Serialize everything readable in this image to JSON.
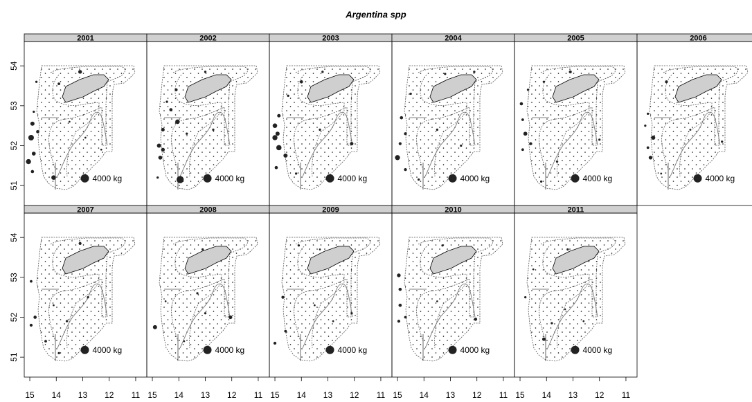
{
  "chart_data": {
    "type": "bubble-map",
    "title": "Argentina spp",
    "xlim": [
      15.21,
      10.58
    ],
    "ylim": [
      50.5,
      54.61
    ],
    "xticks": [
      15,
      14,
      13,
      12,
      11
    ],
    "yticks": [
      51,
      52,
      53,
      54
    ],
    "color": "#222222",
    "legend": {
      "value": 4000,
      "label": "4000 kg",
      "lon": 12.92,
      "lat": 51.18
    },
    "panels": [
      {
        "name": "2001",
        "points": [
          [
            13.1,
            53.85,
            800
          ],
          [
            13.9,
            53.55,
            400
          ],
          [
            14.75,
            53.6,
            300
          ],
          [
            14.85,
            52.85,
            300
          ],
          [
            14.9,
            52.55,
            1000
          ],
          [
            14.7,
            52.35,
            600
          ],
          [
            14.95,
            52.2,
            1800
          ],
          [
            14.85,
            51.8,
            900
          ],
          [
            15.05,
            51.6,
            1500
          ],
          [
            14.9,
            51.35,
            600
          ],
          [
            14.1,
            51.2,
            1200
          ],
          [
            13.5,
            52.6,
            200
          ],
          [
            12.9,
            52.2,
            200
          ],
          [
            12.3,
            51.9,
            200
          ]
        ]
      },
      {
        "name": "2002",
        "points": [
          [
            13.0,
            53.85,
            300
          ],
          [
            14.1,
            53.4,
            500
          ],
          [
            14.3,
            52.9,
            600
          ],
          [
            14.05,
            52.6,
            1200
          ],
          [
            14.6,
            52.4,
            700
          ],
          [
            14.75,
            52.0,
            1000
          ],
          [
            14.6,
            51.9,
            800
          ],
          [
            14.7,
            51.7,
            900
          ],
          [
            13.95,
            51.15,
            3000
          ],
          [
            13.7,
            52.3,
            300
          ],
          [
            12.7,
            52.4,
            300
          ],
          [
            14.8,
            51.2,
            300
          ],
          [
            14.45,
            53.1,
            300
          ]
        ]
      },
      {
        "name": "2003",
        "points": [
          [
            14.0,
            53.6,
            600
          ],
          [
            13.2,
            53.85,
            300
          ],
          [
            14.85,
            52.75,
            700
          ],
          [
            15.0,
            52.5,
            1200
          ],
          [
            14.9,
            52.3,
            1000
          ],
          [
            15.0,
            52.2,
            1500
          ],
          [
            14.85,
            51.95,
            1600
          ],
          [
            14.6,
            51.75,
            1000
          ],
          [
            14.95,
            51.45,
            600
          ],
          [
            12.1,
            52.05,
            700
          ],
          [
            13.3,
            52.4,
            300
          ],
          [
            14.2,
            51.3,
            300
          ],
          [
            14.5,
            53.25,
            300
          ]
        ]
      },
      {
        "name": "2004",
        "points": [
          [
            12.1,
            53.85,
            300
          ],
          [
            13.2,
            53.8,
            300
          ],
          [
            14.85,
            52.7,
            600
          ],
          [
            14.7,
            52.3,
            500
          ],
          [
            14.9,
            52.05,
            500
          ],
          [
            15.0,
            51.7,
            1500
          ],
          [
            14.7,
            51.4,
            500
          ],
          [
            14.2,
            51.15,
            300
          ],
          [
            13.5,
            52.4,
            300
          ],
          [
            12.6,
            52.0,
            300
          ],
          [
            14.5,
            53.3,
            300
          ]
        ]
      },
      {
        "name": "2005",
        "points": [
          [
            13.1,
            53.85,
            500
          ],
          [
            14.1,
            53.6,
            300
          ],
          [
            14.7,
            53.4,
            300
          ],
          [
            14.95,
            53.05,
            600
          ],
          [
            14.9,
            52.65,
            400
          ],
          [
            14.8,
            52.3,
            900
          ],
          [
            14.6,
            52.05,
            500
          ],
          [
            14.9,
            51.9,
            400
          ],
          [
            13.6,
            51.6,
            300
          ],
          [
            12.0,
            52.15,
            300
          ],
          [
            14.2,
            51.1,
            300
          ]
        ]
      },
      {
        "name": "2006",
        "points": [
          [
            14.1,
            53.6,
            500
          ],
          [
            14.8,
            52.8,
            300
          ],
          [
            14.9,
            52.5,
            300
          ],
          [
            14.6,
            52.2,
            1000
          ],
          [
            14.7,
            51.7,
            800
          ],
          [
            14.8,
            51.95,
            400
          ],
          [
            12.0,
            52.1,
            300
          ],
          [
            13.2,
            52.4,
            200
          ],
          [
            14.3,
            51.3,
            200
          ]
        ]
      },
      {
        "name": "2007",
        "points": [
          [
            13.1,
            53.85,
            500
          ],
          [
            14.95,
            52.9,
            400
          ],
          [
            14.8,
            52.0,
            600
          ],
          [
            14.95,
            51.8,
            500
          ],
          [
            14.4,
            51.4,
            400
          ],
          [
            13.9,
            51.1,
            300
          ],
          [
            12.8,
            52.5,
            300
          ],
          [
            13.6,
            51.9,
            300
          ],
          [
            14.1,
            52.3,
            200
          ]
        ]
      },
      {
        "name": "2008",
        "points": [
          [
            14.9,
            51.75,
            1000
          ],
          [
            12.05,
            52.0,
            800
          ],
          [
            13.1,
            53.7,
            300
          ],
          [
            13.3,
            52.6,
            300
          ],
          [
            13.0,
            52.1,
            300
          ],
          [
            14.5,
            52.4,
            200
          ],
          [
            13.8,
            51.4,
            200
          ]
        ]
      },
      {
        "name": "2009",
        "points": [
          [
            14.1,
            53.8,
            300
          ],
          [
            13.3,
            53.7,
            200
          ],
          [
            14.7,
            52.5,
            500
          ],
          [
            15.0,
            51.35,
            500
          ],
          [
            14.6,
            51.65,
            400
          ],
          [
            12.1,
            52.1,
            300
          ],
          [
            13.5,
            52.3,
            200
          ],
          [
            12.8,
            51.9,
            200
          ]
        ]
      },
      {
        "name": "2010",
        "points": [
          [
            14.95,
            53.05,
            800
          ],
          [
            14.9,
            52.7,
            600
          ],
          [
            14.9,
            52.3,
            600
          ],
          [
            14.7,
            52.0,
            400
          ],
          [
            14.95,
            51.9,
            500
          ],
          [
            12.05,
            51.95,
            600
          ],
          [
            13.3,
            53.8,
            300
          ],
          [
            13.5,
            52.4,
            200
          ]
        ]
      },
      {
        "name": "2011",
        "points": [
          [
            14.1,
            51.45,
            700
          ],
          [
            13.8,
            51.85,
            300
          ],
          [
            13.2,
            53.7,
            300
          ],
          [
            14.8,
            52.5,
            300
          ],
          [
            13.3,
            52.2,
            200
          ],
          [
            12.6,
            51.9,
            200
          ],
          [
            14.5,
            53.2,
            200
          ]
        ]
      }
    ]
  }
}
